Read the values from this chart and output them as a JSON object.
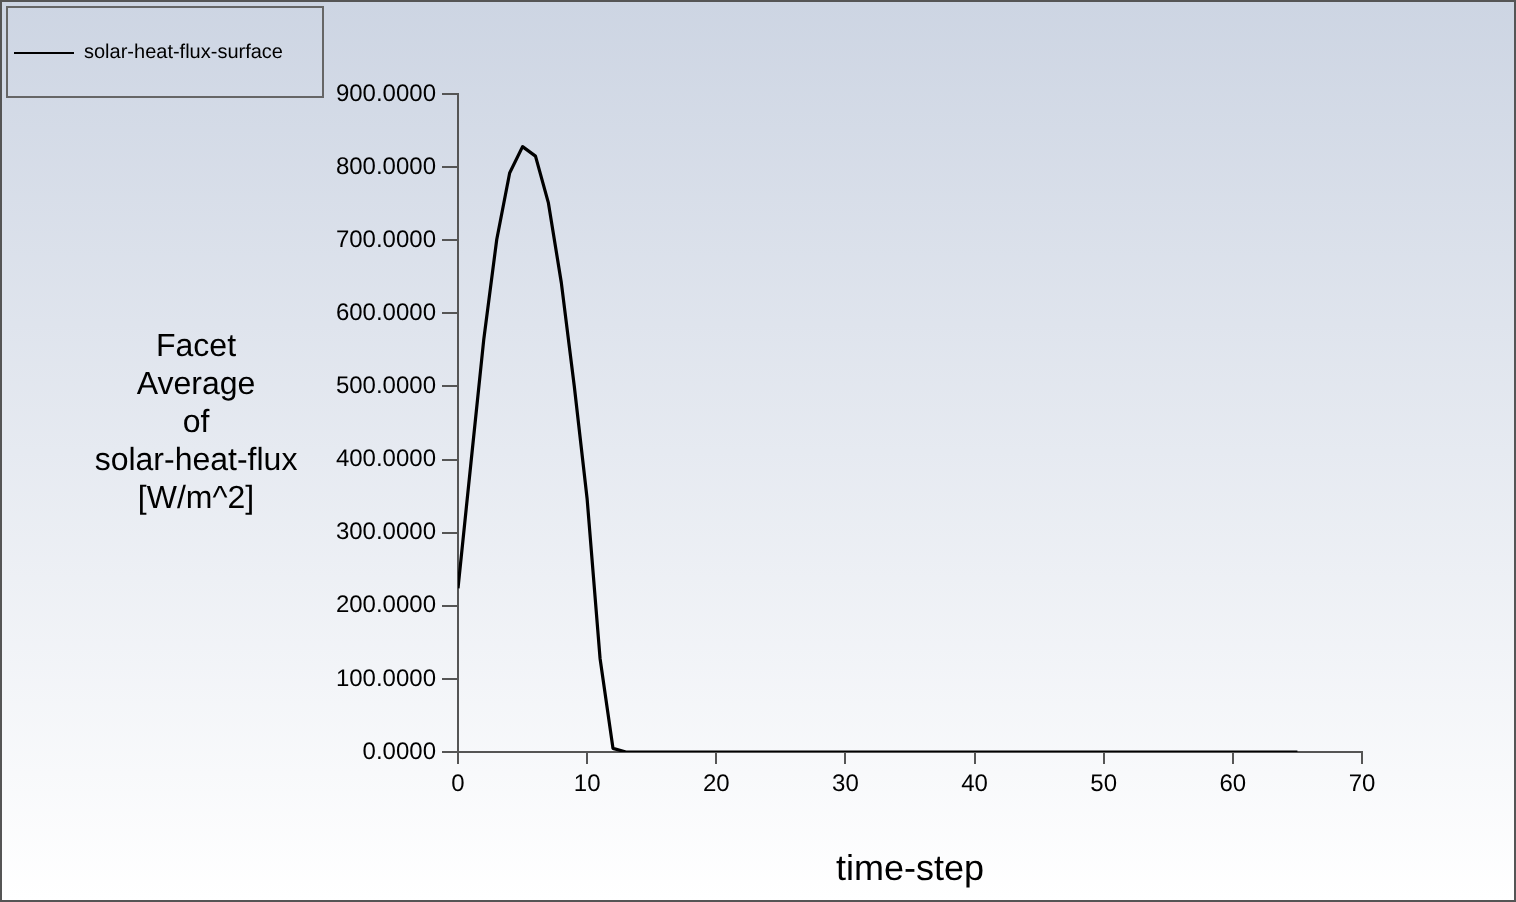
{
  "chart_data": {
    "type": "line",
    "xlabel": "time-step",
    "ylabel": "Facet Average of solar-heat-flux [W/m^2]",
    "x": [
      0,
      1,
      2,
      3,
      4,
      5,
      6,
      7,
      8,
      9,
      10,
      11,
      12,
      13,
      15,
      20,
      25,
      30,
      35,
      40,
      45,
      50,
      55,
      60,
      65
    ],
    "series": [
      {
        "name": "solar-heat-flux-surface",
        "color": "#000000",
        "values": [
          224,
          395,
          565,
          701,
          792,
          828,
          815,
          751,
          642,
          501,
          346,
          128,
          5,
          0,
          0,
          0,
          0,
          0,
          0,
          0,
          0,
          0,
          0,
          0,
          0
        ]
      }
    ],
    "xlim": [
      0,
      70
    ],
    "xticks": [
      0,
      10,
      20,
      30,
      40,
      50,
      60,
      70
    ],
    "ylim": [
      0,
      900
    ],
    "yticks": [
      {
        "value": 0,
        "label": "0.0000"
      },
      {
        "value": 100,
        "label": "100.0000"
      },
      {
        "value": 200,
        "label": "200.0000"
      },
      {
        "value": 300,
        "label": "300.0000"
      },
      {
        "value": 400,
        "label": "400.0000"
      },
      {
        "value": 500,
        "label": "500.0000"
      },
      {
        "value": 600,
        "label": "600.0000"
      },
      {
        "value": 700,
        "label": "700.0000"
      },
      {
        "value": 800,
        "label": "800.0000"
      },
      {
        "value": 900,
        "label": "900.0000"
      }
    ],
    "grid": false,
    "legend": "top left",
    "marker": "none",
    "line_style": "solid"
  }
}
